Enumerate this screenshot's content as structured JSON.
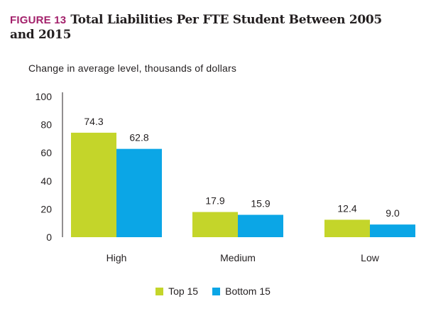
{
  "figure": {
    "label": "FIGURE 13",
    "title": "Total Liabilities Per FTE Student Between 2005 and 2015"
  },
  "chart_data": {
    "type": "bar",
    "title": "Total Liabilities Per FTE Student Between 2005 and 2015",
    "subtitle": "Change in average level, thousands of dollars",
    "xlabel": "",
    "ylabel": "",
    "categories": [
      "High",
      "Medium",
      "Low"
    ],
    "series": [
      {
        "name": "Top 15",
        "values": [
          74.3,
          17.9,
          12.4
        ],
        "labels": [
          "74.3",
          "17.9",
          "12.4"
        ],
        "color": "#c4d52a"
      },
      {
        "name": "Bottom 15",
        "values": [
          62.8,
          15.9,
          9.0
        ],
        "labels": [
          "62.8",
          "15.9",
          "9.0"
        ],
        "color": "#0ba6e6"
      }
    ],
    "ylim": [
      0,
      100
    ],
    "yticks": [
      0,
      20,
      40,
      60,
      80,
      100
    ],
    "grid": false,
    "legend": "bottom-center"
  },
  "colors": {
    "label_accent": "#a3216b",
    "axis": "#231f20"
  }
}
